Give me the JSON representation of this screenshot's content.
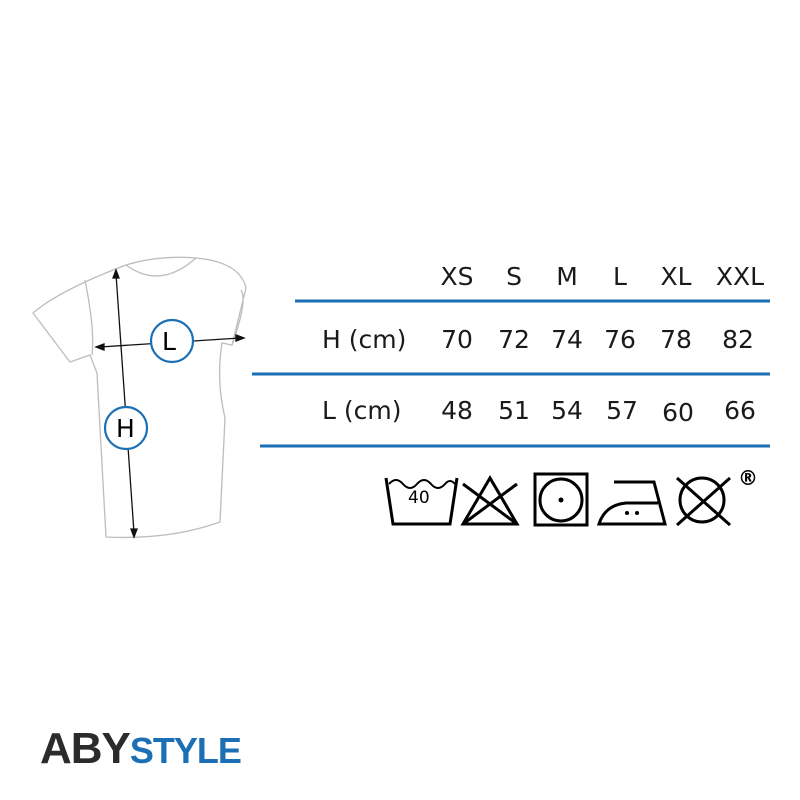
{
  "diagram": {
    "width_label": "L",
    "height_label": "H"
  },
  "size_table": {
    "sizes": [
      "XS",
      "S",
      "M",
      "L",
      "XL",
      "XXL"
    ],
    "rows": [
      {
        "label": "H (cm)",
        "values": [
          "70",
          "72",
          "74",
          "76",
          "78",
          "82"
        ]
      },
      {
        "label": "L (cm)",
        "values": [
          "48",
          "51",
          "54",
          "57",
          "60",
          "66"
        ]
      }
    ]
  },
  "care_symbols": {
    "wash_temperature": "40",
    "icons": [
      "wash-40-icon",
      "do-not-bleach-icon",
      "tumble-dry-low-icon",
      "iron-medium-icon",
      "do-not-dry-clean-icon"
    ],
    "registered_mark": "®"
  },
  "colors": {
    "accent": "#1a6fb5",
    "text": "#1a1a1a",
    "logo_dark": "#2b2b2b"
  },
  "logo": {
    "part1": "ABY",
    "part2": "STYLE"
  }
}
